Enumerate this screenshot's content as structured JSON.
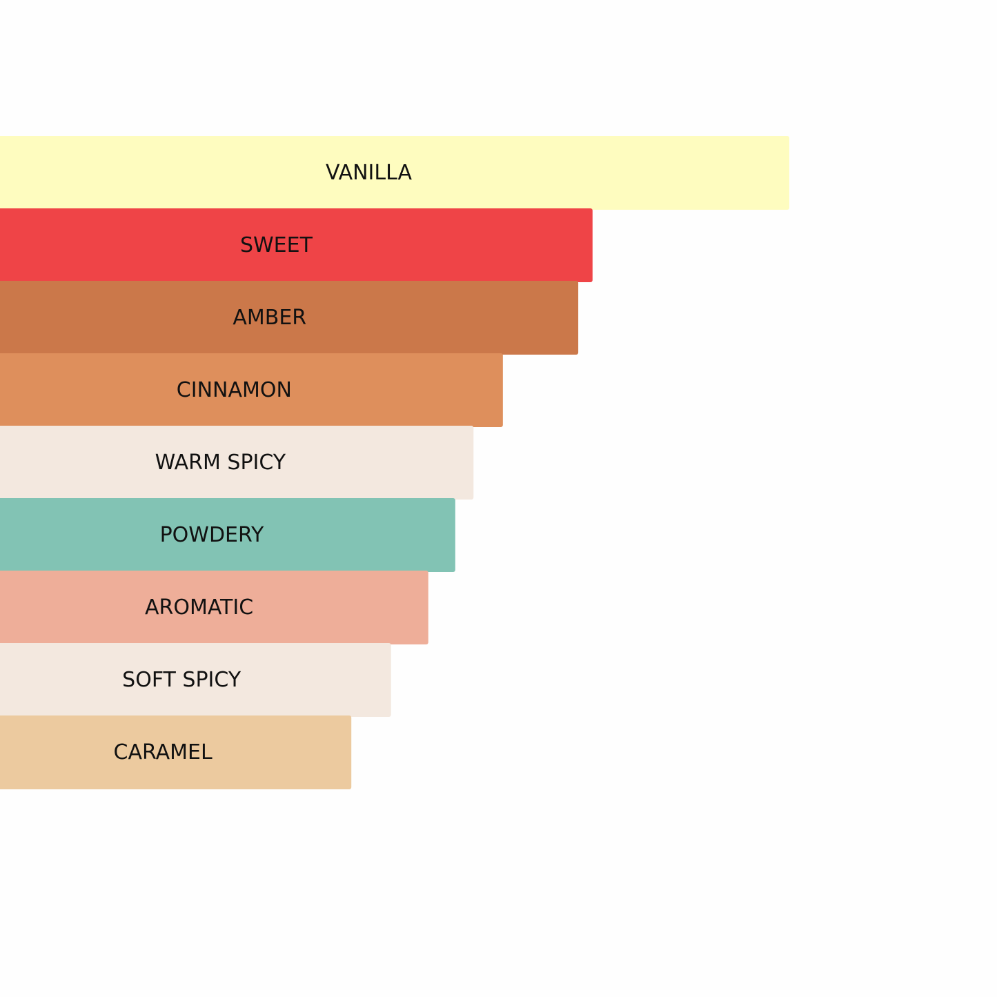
{
  "chart_data": {
    "type": "bar",
    "orientation": "horizontal",
    "grid": false,
    "legend": "none",
    "categories": [
      "VANILLA",
      "SWEET",
      "AMBER",
      "CINNAMON",
      "WARM SPICY",
      "POWDERY",
      "AROMATIC",
      "SOFT SPICY",
      "CARAMEL"
    ],
    "values": [
      100,
      75.2,
      73.4,
      63.9,
      60.2,
      57.9,
      54.5,
      49.8,
      44.8
    ],
    "colors": [
      "#fefcbf",
      "#ef4447",
      "#cb784a",
      "#de8f5c",
      "#f3e8df",
      "#82c3b4",
      "#eeae99",
      "#f3e8df",
      "#ecca9f"
    ],
    "xlim": [
      0,
      100
    ]
  }
}
